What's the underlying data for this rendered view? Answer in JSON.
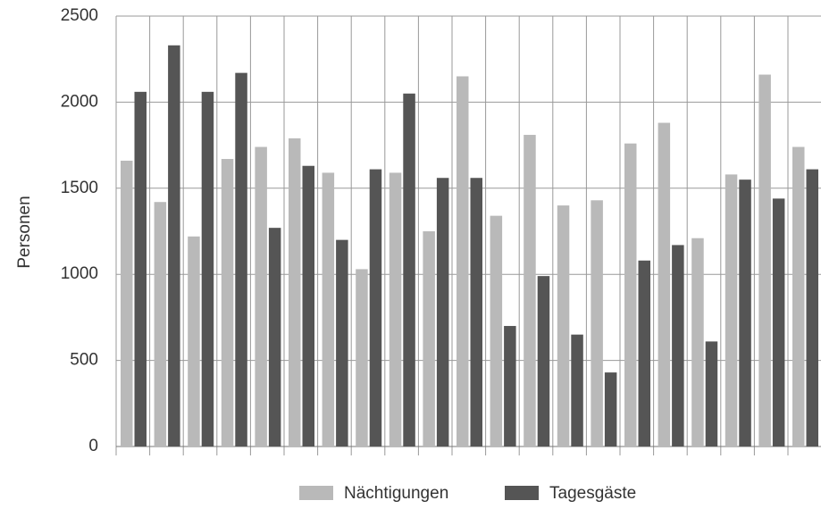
{
  "chart_data": {
    "type": "bar",
    "y_label": "Personen",
    "categories": [
      null,
      null,
      null,
      null,
      null,
      null,
      null,
      null,
      null,
      null,
      null,
      null,
      null,
      null,
      null,
      null,
      null,
      null,
      null,
      null,
      null
    ],
    "series": [
      {
        "name": "Nächtigungen",
        "color": "#b9b9b9",
        "values": [
          1660,
          1420,
          1220,
          1670,
          1740,
          1790,
          1590,
          1030,
          1590,
          1250,
          2150,
          1340,
          1810,
          1400,
          1430,
          1760,
          1880,
          1210,
          1580,
          2160,
          1740
        ]
      },
      {
        "name": "Tagesgäste",
        "color": "#555555",
        "values": [
          2060,
          2330,
          2060,
          2170,
          1270,
          1630,
          1200,
          1610,
          2050,
          1560,
          1560,
          700,
          990,
          650,
          430,
          1080,
          1170,
          610,
          1550,
          1440,
          1610
        ]
      }
    ],
    "ylim": [
      0,
      2500
    ],
    "yticks": [
      0,
      500,
      1000,
      1500,
      2000,
      2500
    ],
    "grid": true,
    "legend": "bottom"
  }
}
